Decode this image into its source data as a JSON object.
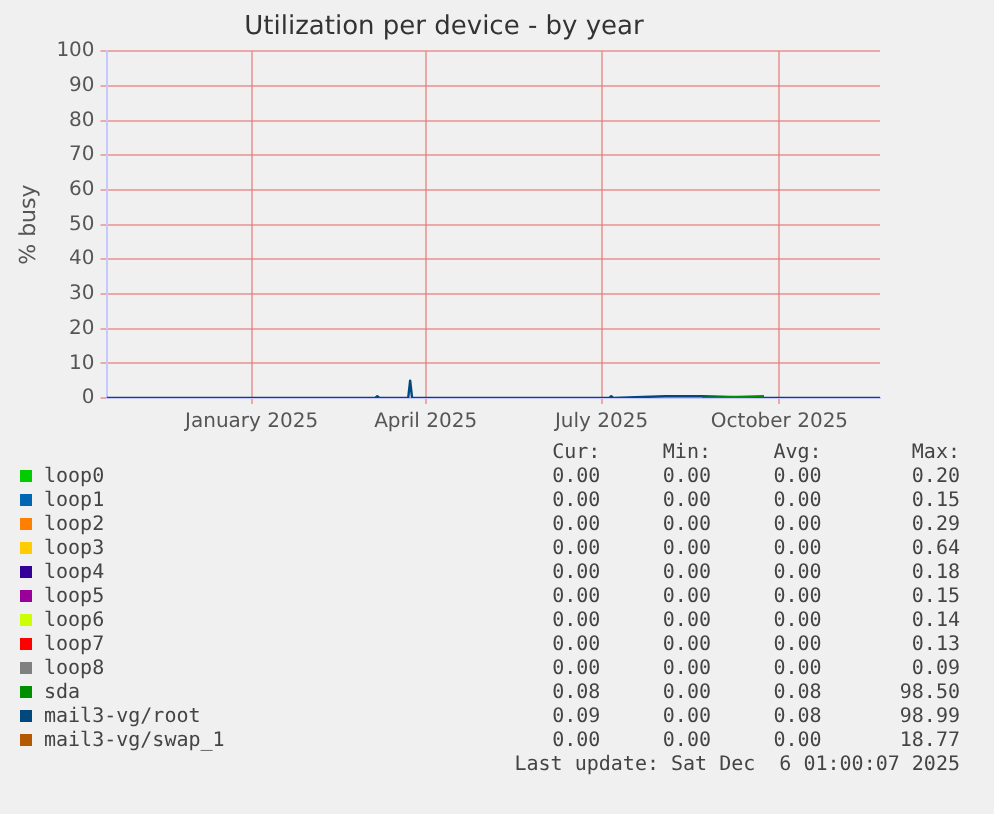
{
  "chart_data": {
    "type": "line",
    "title": "Utilization per device - by year",
    "ylabel": "% busy",
    "x": [
      "2024-11-01",
      "2025-03-20",
      "2025-03-21",
      "2025-03-22",
      "2025-04-06",
      "2025-04-07",
      "2025-04-08",
      "2025-07-19",
      "2025-07-20",
      "2025-07-21",
      "2025-08-17",
      "2025-08-22",
      "2025-09-05",
      "2025-10-07",
      "2025-12-06"
    ],
    "series": [
      {
        "name": "loop0",
        "color": "#00cc00",
        "values": [
          null,
          null,
          null,
          null,
          null,
          null,
          null,
          null,
          null,
          null,
          null,
          null,
          null,
          null,
          null
        ]
      },
      {
        "name": "loop1",
        "color": "#0066b3",
        "values": [
          null,
          null,
          null,
          null,
          null,
          null,
          null,
          null,
          null,
          null,
          null,
          null,
          null,
          null,
          null
        ]
      },
      {
        "name": "loop2",
        "color": "#ff8000",
        "values": [
          null,
          null,
          null,
          null,
          null,
          null,
          null,
          null,
          null,
          null,
          null,
          null,
          null,
          null,
          null
        ]
      },
      {
        "name": "loop3",
        "color": "#ffcc00",
        "values": [
          null,
          null,
          null,
          null,
          null,
          null,
          null,
          null,
          null,
          null,
          null,
          null,
          null,
          null,
          null
        ]
      },
      {
        "name": "loop4",
        "color": "#330099",
        "values": [
          null,
          null,
          null,
          null,
          null,
          null,
          null,
          null,
          null,
          null,
          null,
          null,
          null,
          null,
          null
        ]
      },
      {
        "name": "loop5",
        "color": "#990099",
        "values": [
          null,
          null,
          null,
          null,
          null,
          null,
          null,
          null,
          null,
          null,
          null,
          null,
          null,
          null,
          null
        ]
      },
      {
        "name": "loop6",
        "color": "#ccff00",
        "values": [
          null,
          null,
          null,
          null,
          null,
          null,
          null,
          null,
          null,
          null,
          null,
          null,
          null,
          null,
          null
        ]
      },
      {
        "name": "loop7",
        "color": "#ff0000",
        "values": [
          null,
          null,
          null,
          null,
          null,
          null,
          null,
          null,
          null,
          null,
          null,
          null,
          null,
          null,
          null
        ]
      },
      {
        "name": "loop8",
        "color": "#808080",
        "values": [
          null,
          null,
          null,
          null,
          null,
          null,
          null,
          null,
          null,
          null,
          null,
          null,
          null,
          null,
          null
        ]
      },
      {
        "name": "sda",
        "color": "#008f00",
        "values": [
          null,
          null,
          null,
          null,
          null,
          null,
          null,
          null,
          null,
          null,
          null,
          null,
          0,
          0.5,
          null
        ]
      },
      {
        "name": "mail3-vg/root",
        "color": "#00487d",
        "values": [
          0,
          0,
          0.5,
          0,
          0,
          5,
          0,
          0,
          0.5,
          0,
          0.5,
          0.5,
          0.5,
          0,
          0
        ]
      },
      {
        "name": "mail3-vg/swap_1",
        "color": "#b35a00",
        "values": [
          null,
          null,
          null,
          null,
          null,
          null,
          null,
          null,
          null,
          null,
          null,
          null,
          null,
          null,
          null
        ]
      }
    ],
    "xlim": [
      "2024-11-01",
      "2025-12-06"
    ],
    "xticks": [
      {
        "value": "2025-01-15",
        "label": "January 2025"
      },
      {
        "value": "2025-04-15",
        "label": "April 2025"
      },
      {
        "value": "2025-07-15",
        "label": "July 2025"
      },
      {
        "value": "2025-10-15",
        "label": "October 2025"
      }
    ],
    "ylim": [
      0,
      100
    ],
    "yticks": [
      0,
      10,
      20,
      30,
      40,
      50,
      60,
      70,
      80,
      90,
      100
    ],
    "grid": true,
    "legend": "bottom",
    "marker": "none",
    "line_style": "solid",
    "annotations": [
      "Cur:",
      "Min:",
      "Avg:",
      "Max:",
      "0.00",
      "0.00",
      "0.00",
      "0.20",
      "0.00",
      "0.00",
      "0.00",
      "0.15",
      "0.00",
      "0.00",
      "0.00",
      "0.29",
      "0.00",
      "0.00",
      "0.00",
      "0.64",
      "0.00",
      "0.00",
      "0.00",
      "0.18",
      "0.00",
      "0.00",
      "0.00",
      "0.15",
      "0.00",
      "0.00",
      "0.00",
      "0.14",
      "0.00",
      "0.00",
      "0.00",
      "0.13",
      "0.00",
      "0.00",
      "0.00",
      "0.09",
      "0.08",
      "0.00",
      "0.08",
      "98.50",
      "0.09",
      "0.00",
      "0.08",
      "98.99",
      "0.00",
      "0.00",
      "0.00",
      "18.77",
      "Last update: Sat Dec  6 01:00:07 2025"
    ]
  }
}
